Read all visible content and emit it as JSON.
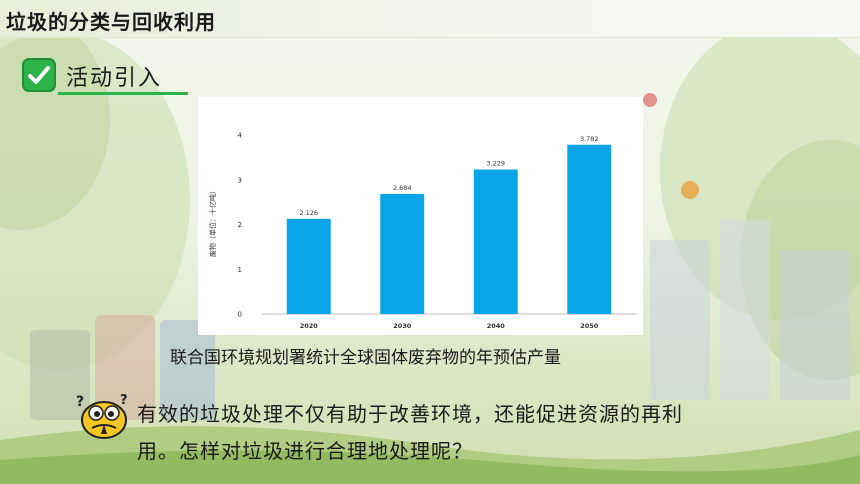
{
  "header": {
    "title": "垃圾的分类与回收利用"
  },
  "section": {
    "label": "活动引入"
  },
  "chart_data": {
    "type": "bar",
    "categories": [
      "2020",
      "2030",
      "2040",
      "2050"
    ],
    "values": [
      2.126,
      2.684,
      3.229,
      3.782
    ],
    "data_labels": [
      "2.126",
      "2.684",
      "3.229",
      "3.782"
    ],
    "title": "",
    "xlabel": "",
    "ylabel": "废物（单位：十亿吨）",
    "ylim": [
      0,
      4
    ],
    "yticks": [
      0,
      1,
      2,
      3,
      4
    ],
    "grid": false,
    "bar_color": "#0aa5e8"
  },
  "caption": "联合国环境规划署统计全球固体废弃物的年预估产量",
  "question": {
    "line1": "有效的垃圾处理不仅有助于改善环境，还能促进资源的再利",
    "line2": "用。怎样对垃圾进行合理地处理呢？"
  },
  "colors": {
    "accent": "#2bb34a",
    "bar": "#0aa5e8"
  },
  "icons": {
    "section": "check-icon",
    "mascot": "thinking-face-icon"
  }
}
